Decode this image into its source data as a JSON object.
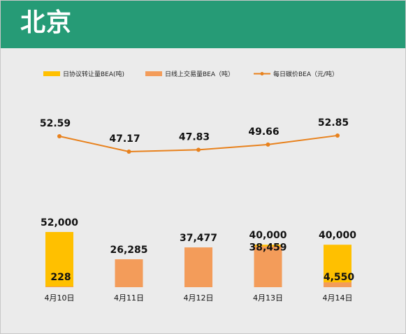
{
  "header": {
    "title": "北京"
  },
  "chart_data": {
    "type": "bar",
    "categories": [
      "4月10日",
      "4月11日",
      "4月12日",
      "4月13日",
      "4月14日"
    ],
    "series": [
      {
        "name": "日协议转让量BEA(吨)",
        "kind": "bar",
        "color": "#ffc000",
        "values": [
          52000,
          null,
          null,
          40000,
          40000
        ],
        "labels": [
          "52,000",
          "",
          "",
          "40,000",
          "40,000"
        ]
      },
      {
        "name": "日线上交易量BEA（吨）",
        "kind": "bar",
        "color": "#f39c5a",
        "values": [
          228,
          26285,
          37477,
          38459,
          4550
        ],
        "labels": [
          "228",
          "26,285",
          "37,477",
          "38,459",
          "4,550"
        ]
      },
      {
        "name": "每日碳价BEA（元/吨）",
        "kind": "line",
        "color": "#e8811c",
        "values": [
          52.59,
          47.17,
          47.83,
          49.66,
          52.85
        ],
        "labels": [
          "52.59",
          "47.17",
          "47.83",
          "49.66",
          "52.85"
        ]
      }
    ],
    "legend_position": "top",
    "grid": false
  }
}
